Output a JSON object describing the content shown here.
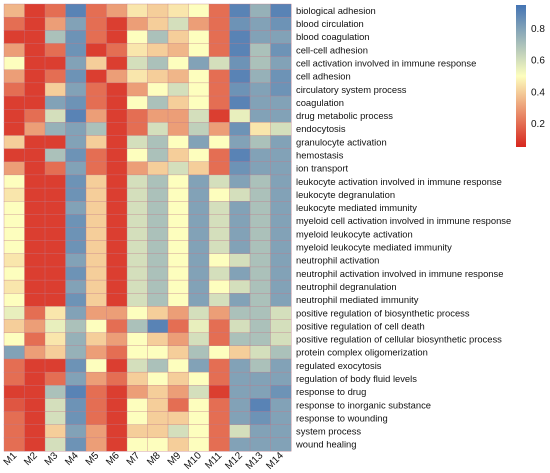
{
  "chart_data": {
    "type": "heatmap",
    "columns": [
      "M1",
      "M2",
      "M3",
      "M4",
      "M5",
      "M6",
      "M7",
      "M8",
      "M9",
      "M10",
      "M11",
      "M12",
      "M13",
      "M14"
    ],
    "rows": [
      "biological adhesion",
      "blood circulation",
      "blood coagulation",
      "cell-cell adhesion",
      "cell activation involved in immune response",
      "cell adhesion",
      "circulatory system process",
      "coagulation",
      "drug metabolic process",
      "endocytosis",
      "granulocyte activation",
      "hemostasis",
      "ion transport",
      "leukocyte activation involved in immune response",
      "leukocyte degranulation",
      "leukocyte mediated immunity",
      "myeloid cell activation involved in immune response",
      "myeloid leukocyte activation",
      "myeloid leukocyte mediated immunity",
      "neutrophil activation",
      "neutrophil activation involved in immune response",
      "neutrophil degranulation",
      "neutrophil mediated immunity",
      "positive regulation of biosynthetic process",
      "positive regulation of cell death",
      "positive regulation of cellular biosynthetic process",
      "protein complex oligomerization",
      "regulated exocytosis",
      "regulation of body fluid levels",
      "response to drug",
      "response to inorganic substance",
      "response to wounding",
      "system process",
      "wound healing"
    ],
    "values": [
      [
        0.35,
        0.1,
        0.2,
        0.9,
        0.2,
        0.3,
        0.45,
        0.4,
        0.45,
        0.5,
        0.2,
        0.9,
        0.75,
        0.9
      ],
      [
        0.2,
        0.1,
        0.3,
        0.8,
        0.2,
        0.1,
        0.3,
        0.4,
        0.6,
        0.3,
        0.2,
        0.85,
        0.8,
        0.85
      ],
      [
        0.1,
        0.1,
        0.7,
        0.85,
        0.2,
        0.1,
        0.5,
        0.7,
        0.4,
        0.5,
        0.2,
        0.9,
        0.8,
        0.8
      ],
      [
        0.3,
        0.1,
        0.2,
        0.85,
        0.1,
        0.2,
        0.45,
        0.4,
        0.35,
        0.5,
        0.2,
        0.9,
        0.7,
        0.85
      ],
      [
        0.5,
        0.1,
        0.1,
        0.8,
        0.4,
        0.1,
        0.6,
        0.7,
        0.5,
        0.8,
        0.6,
        0.85,
        0.7,
        0.8
      ],
      [
        0.3,
        0.1,
        0.2,
        0.85,
        0.1,
        0.3,
        0.45,
        0.4,
        0.35,
        0.5,
        0.2,
        0.9,
        0.75,
        0.85
      ],
      [
        0.2,
        0.1,
        0.4,
        0.8,
        0.2,
        0.1,
        0.3,
        0.5,
        0.6,
        0.5,
        0.2,
        0.85,
        0.8,
        0.85
      ],
      [
        0.1,
        0.1,
        0.8,
        0.85,
        0.2,
        0.1,
        0.5,
        0.7,
        0.4,
        0.5,
        0.2,
        0.9,
        0.8,
        0.8
      ],
      [
        0.1,
        0.2,
        0.6,
        0.9,
        0.3,
        0.1,
        0.2,
        0.3,
        0.3,
        0.6,
        0.1,
        0.55,
        0.8,
        0.8
      ],
      [
        0.1,
        0.3,
        0.75,
        0.8,
        0.7,
        0.1,
        0.2,
        0.6,
        0.3,
        0.65,
        0.3,
        0.85,
        0.45,
        0.6
      ],
      [
        0.4,
        0.1,
        0.1,
        0.8,
        0.4,
        0.1,
        0.6,
        0.7,
        0.5,
        0.8,
        0.5,
        0.8,
        0.7,
        0.8
      ],
      [
        0.1,
        0.1,
        0.7,
        0.85,
        0.2,
        0.1,
        0.5,
        0.7,
        0.4,
        0.5,
        0.2,
        0.9,
        0.8,
        0.8
      ],
      [
        0.3,
        0.1,
        0.2,
        0.8,
        0.2,
        0.1,
        0.3,
        0.4,
        0.6,
        0.4,
        0.2,
        0.85,
        0.8,
        0.8
      ],
      [
        0.5,
        0.1,
        0.1,
        0.85,
        0.4,
        0.1,
        0.6,
        0.7,
        0.5,
        0.8,
        0.6,
        0.8,
        0.7,
        0.8
      ],
      [
        0.45,
        0.1,
        0.1,
        0.85,
        0.4,
        0.1,
        0.6,
        0.7,
        0.5,
        0.8,
        0.5,
        0.6,
        0.7,
        0.8
      ],
      [
        0.5,
        0.1,
        0.1,
        0.8,
        0.4,
        0.1,
        0.6,
        0.7,
        0.5,
        0.8,
        0.6,
        0.8,
        0.7,
        0.8
      ],
      [
        0.5,
        0.1,
        0.1,
        0.85,
        0.4,
        0.1,
        0.6,
        0.7,
        0.5,
        0.8,
        0.6,
        0.8,
        0.7,
        0.8
      ],
      [
        0.5,
        0.1,
        0.1,
        0.85,
        0.4,
        0.1,
        0.6,
        0.7,
        0.5,
        0.8,
        0.6,
        0.8,
        0.7,
        0.8
      ],
      [
        0.5,
        0.1,
        0.1,
        0.85,
        0.4,
        0.1,
        0.6,
        0.7,
        0.5,
        0.8,
        0.6,
        0.8,
        0.7,
        0.8
      ],
      [
        0.45,
        0.1,
        0.1,
        0.8,
        0.4,
        0.1,
        0.6,
        0.7,
        0.5,
        0.8,
        0.5,
        0.6,
        0.7,
        0.8
      ],
      [
        0.5,
        0.1,
        0.1,
        0.85,
        0.4,
        0.1,
        0.6,
        0.7,
        0.5,
        0.8,
        0.6,
        0.8,
        0.7,
        0.8
      ],
      [
        0.45,
        0.1,
        0.1,
        0.8,
        0.4,
        0.1,
        0.6,
        0.7,
        0.5,
        0.8,
        0.5,
        0.6,
        0.7,
        0.8
      ],
      [
        0.5,
        0.1,
        0.1,
        0.85,
        0.4,
        0.1,
        0.6,
        0.7,
        0.5,
        0.8,
        0.6,
        0.8,
        0.7,
        0.8
      ],
      [
        0.55,
        0.2,
        0.45,
        0.8,
        0.3,
        0.3,
        0.5,
        0.4,
        0.3,
        0.6,
        0.3,
        0.7,
        0.7,
        0.6
      ],
      [
        0.4,
        0.3,
        0.55,
        0.7,
        0.5,
        0.2,
        0.7,
        0.9,
        0.2,
        0.55,
        0.2,
        0.6,
        0.7,
        0.6
      ],
      [
        0.5,
        0.2,
        0.45,
        0.75,
        0.4,
        0.3,
        0.5,
        0.4,
        0.3,
        0.6,
        0.2,
        0.7,
        0.7,
        0.6
      ],
      [
        0.8,
        0.3,
        0.4,
        0.75,
        0.3,
        0.2,
        0.5,
        0.5,
        0.4,
        0.7,
        0.5,
        0.4,
        0.6,
        0.7
      ],
      [
        0.2,
        0.1,
        0.1,
        0.85,
        0.5,
        0.1,
        0.6,
        0.7,
        0.5,
        0.8,
        0.2,
        0.8,
        0.7,
        0.8
      ],
      [
        0.2,
        0.1,
        0.2,
        0.8,
        0.3,
        0.2,
        0.4,
        0.5,
        0.4,
        0.5,
        0.2,
        0.8,
        0.8,
        0.8
      ],
      [
        0.1,
        0.1,
        0.7,
        0.9,
        0.2,
        0.1,
        0.3,
        0.4,
        0.3,
        0.6,
        0.1,
        0.8,
        0.8,
        0.85
      ],
      [
        0.15,
        0.1,
        0.6,
        0.85,
        0.2,
        0.1,
        0.5,
        0.4,
        0.2,
        0.5,
        0.2,
        0.8,
        0.9,
        0.8
      ],
      [
        0.2,
        0.1,
        0.6,
        0.85,
        0.2,
        0.1,
        0.5,
        0.4,
        0.4,
        0.5,
        0.2,
        0.8,
        0.85,
        0.8
      ],
      [
        0.2,
        0.1,
        0.4,
        0.8,
        0.3,
        0.1,
        0.4,
        0.4,
        0.6,
        0.5,
        0.2,
        0.6,
        0.8,
        0.8
      ],
      [
        0.2,
        0.1,
        0.6,
        0.85,
        0.3,
        0.1,
        0.5,
        0.5,
        0.4,
        0.5,
        0.2,
        0.8,
        0.8,
        0.8
      ]
    ],
    "colorbar": {
      "range": [
        0.05,
        0.95
      ],
      "ticks": [
        "0.2",
        "0.4",
        "0.6",
        "0.8"
      ],
      "tick_values": [
        0.2,
        0.4,
        0.6,
        0.8
      ]
    },
    "colors": {
      "low": "#d7261e",
      "mid": "#fdfebe",
      "high": "#4474b4"
    }
  }
}
